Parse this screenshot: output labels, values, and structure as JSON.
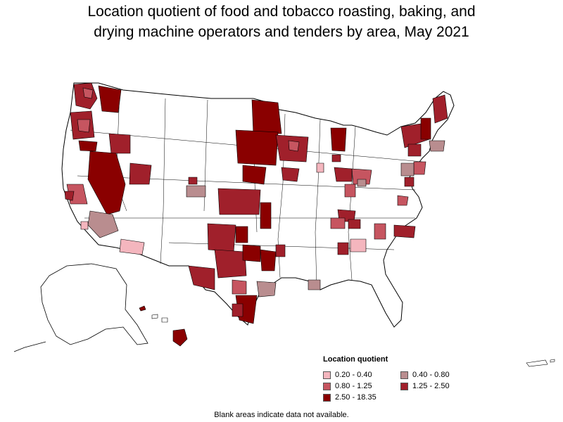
{
  "title": {
    "line1": "Location quotient of food and tobacco roasting, baking, and",
    "line2": "drying machine operators and tenders by area, May 2021"
  },
  "legend": {
    "title": "Location quotient",
    "items": [
      {
        "label": "0.20 - 0.40",
        "color": "#f4b6be"
      },
      {
        "label": "0.40 - 0.80",
        "color": "#b98d8f"
      },
      {
        "label": "0.80 - 1.25",
        "color": "#c65560"
      },
      {
        "label": "1.25 - 2.50",
        "color": "#a0202b"
      },
      {
        "label": "2.50 - 18.35",
        "color": "#8a0000"
      }
    ]
  },
  "note": "Blank areas indicate data not available.",
  "colors": {
    "no_data": "#ffffff",
    "border": "#000000",
    "q_0_20_0_40": "#f4b6be",
    "q_0_40_0_80": "#b98d8f",
    "q_0_80_1_25": "#c65560",
    "q_1_25_2_50": "#a0202b",
    "q_2_50_18_35": "#8a0000"
  }
}
